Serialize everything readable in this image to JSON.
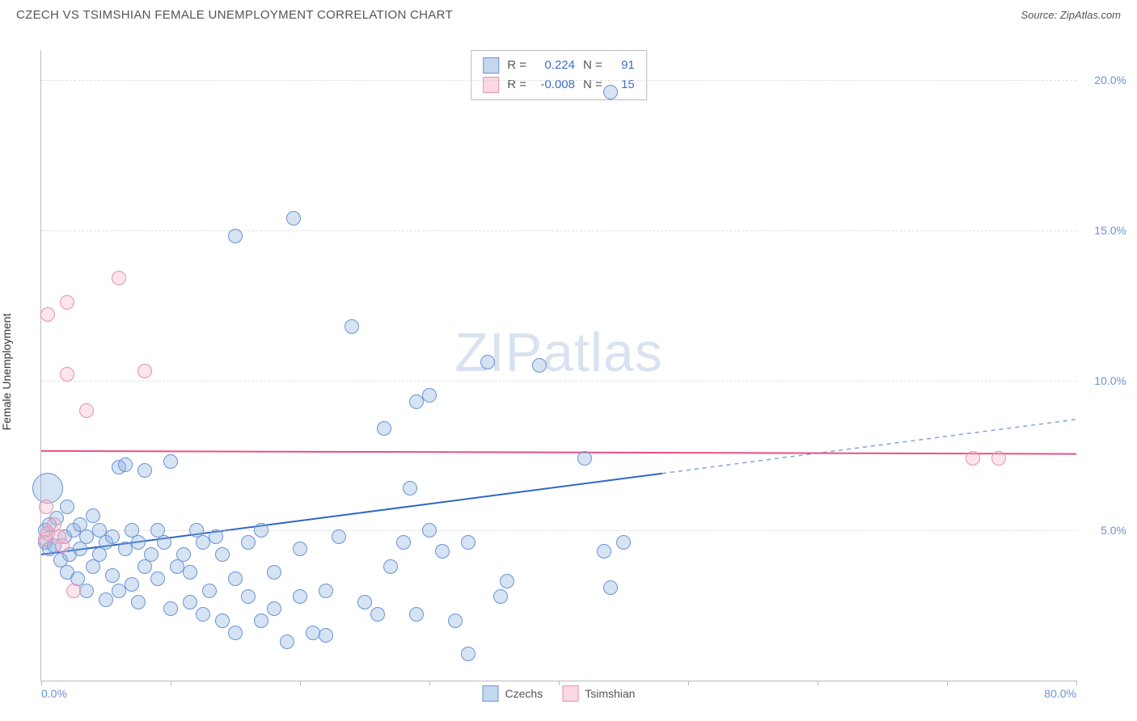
{
  "header": {
    "title": "CZECH VS TSIMSHIAN FEMALE UNEMPLOYMENT CORRELATION CHART",
    "source": "Source: ZipAtlas.com"
  },
  "chart": {
    "type": "scatter",
    "ylabel": "Female Unemployment",
    "watermark": "ZIPatlas",
    "background_color": "#ffffff",
    "grid_color": "#cccccc",
    "axis_color": "#bbbbbb",
    "label_color": "#6b93d6",
    "xlim": [
      0,
      80
    ],
    "ylim": [
      0,
      21
    ],
    "yticks": [
      {
        "value": 5.0,
        "label": "5.0%"
      },
      {
        "value": 10.0,
        "label": "10.0%"
      },
      {
        "value": 15.0,
        "label": "15.0%"
      },
      {
        "value": 20.0,
        "label": "20.0%"
      }
    ],
    "xticks": [
      0,
      10,
      20,
      30,
      40,
      50,
      60,
      70,
      80
    ],
    "xtick_labels": {
      "0": "0.0%",
      "80": "80.0%"
    },
    "series": [
      {
        "name": "Czechs",
        "color_fill": "rgba(135,175,222,0.35)",
        "color_stroke": "#6b93d6",
        "marker_radius": 8,
        "trend": {
          "x1": 0,
          "y1": 4.2,
          "x2": 48,
          "y2": 6.9,
          "color": "#2f66c4",
          "width": 2,
          "dash_x2": 80,
          "dash_y2": 8.7
        },
        "R": "0.224",
        "N": "91",
        "points": [
          [
            0.3,
            4.6
          ],
          [
            0.3,
            5.0
          ],
          [
            0.5,
            6.4,
            18
          ],
          [
            0.6,
            4.4
          ],
          [
            0.6,
            5.2
          ],
          [
            1.0,
            4.5
          ],
          [
            1.2,
            5.4
          ],
          [
            1.5,
            4.0
          ],
          [
            1.8,
            4.8
          ],
          [
            2.0,
            5.8
          ],
          [
            2.0,
            3.6
          ],
          [
            2.2,
            4.2
          ],
          [
            2.5,
            5.0
          ],
          [
            2.8,
            3.4
          ],
          [
            3.0,
            4.4
          ],
          [
            3.0,
            5.2
          ],
          [
            3.5,
            3.0
          ],
          [
            3.5,
            4.8
          ],
          [
            4.0,
            3.8
          ],
          [
            4.0,
            5.5
          ],
          [
            4.5,
            4.2
          ],
          [
            4.5,
            5.0
          ],
          [
            5.0,
            2.7
          ],
          [
            5.0,
            4.6
          ],
          [
            5.5,
            3.5
          ],
          [
            5.5,
            4.8
          ],
          [
            6.0,
            7.1
          ],
          [
            6.0,
            3.0
          ],
          [
            6.5,
            4.4
          ],
          [
            6.5,
            7.2
          ],
          [
            7.0,
            3.2
          ],
          [
            7.0,
            5.0
          ],
          [
            7.5,
            4.6
          ],
          [
            7.5,
            2.6
          ],
          [
            8.0,
            3.8
          ],
          [
            8.0,
            7.0
          ],
          [
            8.5,
            4.2
          ],
          [
            9.0,
            3.4
          ],
          [
            9.0,
            5.0
          ],
          [
            9.5,
            4.6
          ],
          [
            10.0,
            2.4
          ],
          [
            10.0,
            7.3
          ],
          [
            10.5,
            3.8
          ],
          [
            11.0,
            4.2
          ],
          [
            11.5,
            2.6
          ],
          [
            11.5,
            3.6
          ],
          [
            12.0,
            5.0
          ],
          [
            12.5,
            2.2
          ],
          [
            12.5,
            4.6
          ],
          [
            13.0,
            3.0
          ],
          [
            13.5,
            4.8
          ],
          [
            14.0,
            2.0
          ],
          [
            14.0,
            4.2
          ],
          [
            15.0,
            3.4
          ],
          [
            15.0,
            1.6
          ],
          [
            15.0,
            14.8
          ],
          [
            16.0,
            2.8
          ],
          [
            16.0,
            4.6
          ],
          [
            17.0,
            2.0
          ],
          [
            17.0,
            5.0
          ],
          [
            18.0,
            2.4
          ],
          [
            18.0,
            3.6
          ],
          [
            19.0,
            1.3
          ],
          [
            19.5,
            15.4
          ],
          [
            20.0,
            2.8
          ],
          [
            20.0,
            4.4
          ],
          [
            21.0,
            1.6
          ],
          [
            22.0,
            3.0
          ],
          [
            22.0,
            1.5
          ],
          [
            23.0,
            4.8
          ],
          [
            24.0,
            11.8
          ],
          [
            25.0,
            2.6
          ],
          [
            26.0,
            2.2
          ],
          [
            26.5,
            8.4
          ],
          [
            27.0,
            3.8
          ],
          [
            28.0,
            4.6
          ],
          [
            28.5,
            6.4
          ],
          [
            29.0,
            2.2
          ],
          [
            29.0,
            9.3
          ],
          [
            30.0,
            9.5
          ],
          [
            30.0,
            5.0
          ],
          [
            31.0,
            4.3
          ],
          [
            32.0,
            2.0
          ],
          [
            33.0,
            4.6
          ],
          [
            33.0,
            0.9
          ],
          [
            34.5,
            10.6
          ],
          [
            35.5,
            2.8
          ],
          [
            36.0,
            3.3
          ],
          [
            38.5,
            10.5
          ],
          [
            42.0,
            7.4
          ],
          [
            43.5,
            4.3
          ],
          [
            44.0,
            19.6
          ],
          [
            44.0,
            3.1
          ],
          [
            45.0,
            4.6
          ]
        ]
      },
      {
        "name": "Tsimshian",
        "color_fill": "rgba(245,180,200,0.35)",
        "color_stroke": "#e78fb0",
        "marker_radius": 8,
        "trend": {
          "x1": 0,
          "y1": 7.65,
          "x2": 80,
          "y2": 7.55,
          "color": "#e94f86",
          "width": 2
        },
        "R": "-0.008",
        "N": "15",
        "points": [
          [
            0.3,
            4.7
          ],
          [
            0.4,
            5.8
          ],
          [
            0.5,
            4.9
          ],
          [
            0.5,
            12.2
          ],
          [
            1.0,
            5.2
          ],
          [
            1.4,
            4.8
          ],
          [
            1.6,
            4.5
          ],
          [
            2.0,
            12.6
          ],
          [
            2.0,
            10.2
          ],
          [
            2.5,
            3.0
          ],
          [
            3.5,
            9.0
          ],
          [
            6.0,
            13.4
          ],
          [
            8.0,
            10.3
          ],
          [
            72.0,
            7.4
          ],
          [
            74.0,
            7.4
          ]
        ]
      }
    ],
    "legend_top": [
      {
        "swatch": "blue",
        "R_label": "R =",
        "R": "0.224",
        "N_label": "N =",
        "N": "91"
      },
      {
        "swatch": "pink",
        "R_label": "R =",
        "R": "-0.008",
        "N_label": "N =",
        "N": "15"
      }
    ],
    "legend_bottom": [
      {
        "swatch": "blue",
        "label": "Czechs"
      },
      {
        "swatch": "pink",
        "label": "Tsimshian"
      }
    ]
  }
}
